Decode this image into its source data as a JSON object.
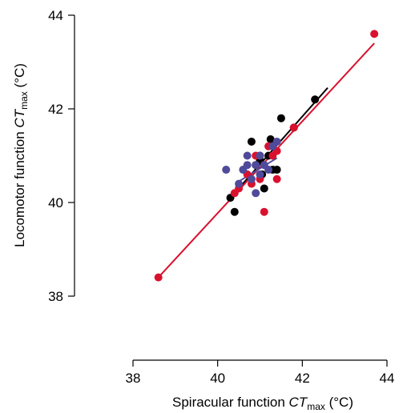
{
  "chart_data": {
    "type": "scatter",
    "xlabel": {
      "main": "Spiracular function ",
      "italic": "CT",
      "sub": "max",
      "unit": " (°C)"
    },
    "ylabel": {
      "main": "Locomotor function ",
      "italic": "CT",
      "sub": "max",
      "unit": " (°C)"
    },
    "xlim": [
      38,
      44
    ],
    "ylim": [
      38,
      44
    ],
    "xticks": [
      38,
      40,
      42,
      44
    ],
    "yticks": [
      38,
      40,
      42,
      44
    ],
    "grid": false,
    "series": [
      {
        "color": "#000000",
        "points": [
          [
            40.3,
            40.1
          ],
          [
            40.4,
            39.8
          ],
          [
            40.8,
            41.3
          ],
          [
            41.0,
            40.9
          ],
          [
            41.0,
            41.0
          ],
          [
            41.05,
            40.6
          ],
          [
            41.1,
            40.3
          ],
          [
            41.2,
            41.0
          ],
          [
            41.25,
            41.35
          ],
          [
            41.3,
            40.7
          ],
          [
            41.4,
            40.7
          ],
          [
            41.5,
            41.8
          ],
          [
            41.8,
            41.6
          ],
          [
            42.3,
            42.2
          ],
          [
            40.9,
            40.8
          ]
        ],
        "fit": [
          [
            40.3,
            40.1
          ],
          [
            42.6,
            42.45
          ]
        ]
      },
      {
        "color": "#d9112e",
        "points": [
          [
            38.6,
            38.4
          ],
          [
            40.4,
            40.2
          ],
          [
            40.5,
            40.3
          ],
          [
            40.7,
            40.6
          ],
          [
            40.8,
            40.4
          ],
          [
            40.9,
            41.0
          ],
          [
            41.0,
            40.5
          ],
          [
            41.1,
            39.8
          ],
          [
            41.2,
            41.2
          ],
          [
            41.3,
            41.0
          ],
          [
            41.4,
            41.1
          ],
          [
            41.4,
            40.5
          ],
          [
            41.8,
            41.6
          ],
          [
            43.7,
            43.6
          ]
        ],
        "fit": [
          [
            38.6,
            38.4
          ],
          [
            43.7,
            43.4
          ]
        ]
      },
      {
        "color": "#4f4a9a",
        "points": [
          [
            40.2,
            40.7
          ],
          [
            40.5,
            40.4
          ],
          [
            40.6,
            40.7
          ],
          [
            40.7,
            41.0
          ],
          [
            40.7,
            40.8
          ],
          [
            40.8,
            40.5
          ],
          [
            40.9,
            40.2
          ],
          [
            40.9,
            40.8
          ],
          [
            41.0,
            41.0
          ],
          [
            41.1,
            40.8
          ],
          [
            41.2,
            40.7
          ],
          [
            41.3,
            41.2
          ],
          [
            41.4,
            41.3
          ],
          [
            41.0,
            40.6
          ]
        ],
        "fit": [
          [
            40.5,
            40.45
          ],
          [
            41.4,
            40.95
          ]
        ]
      }
    ]
  }
}
